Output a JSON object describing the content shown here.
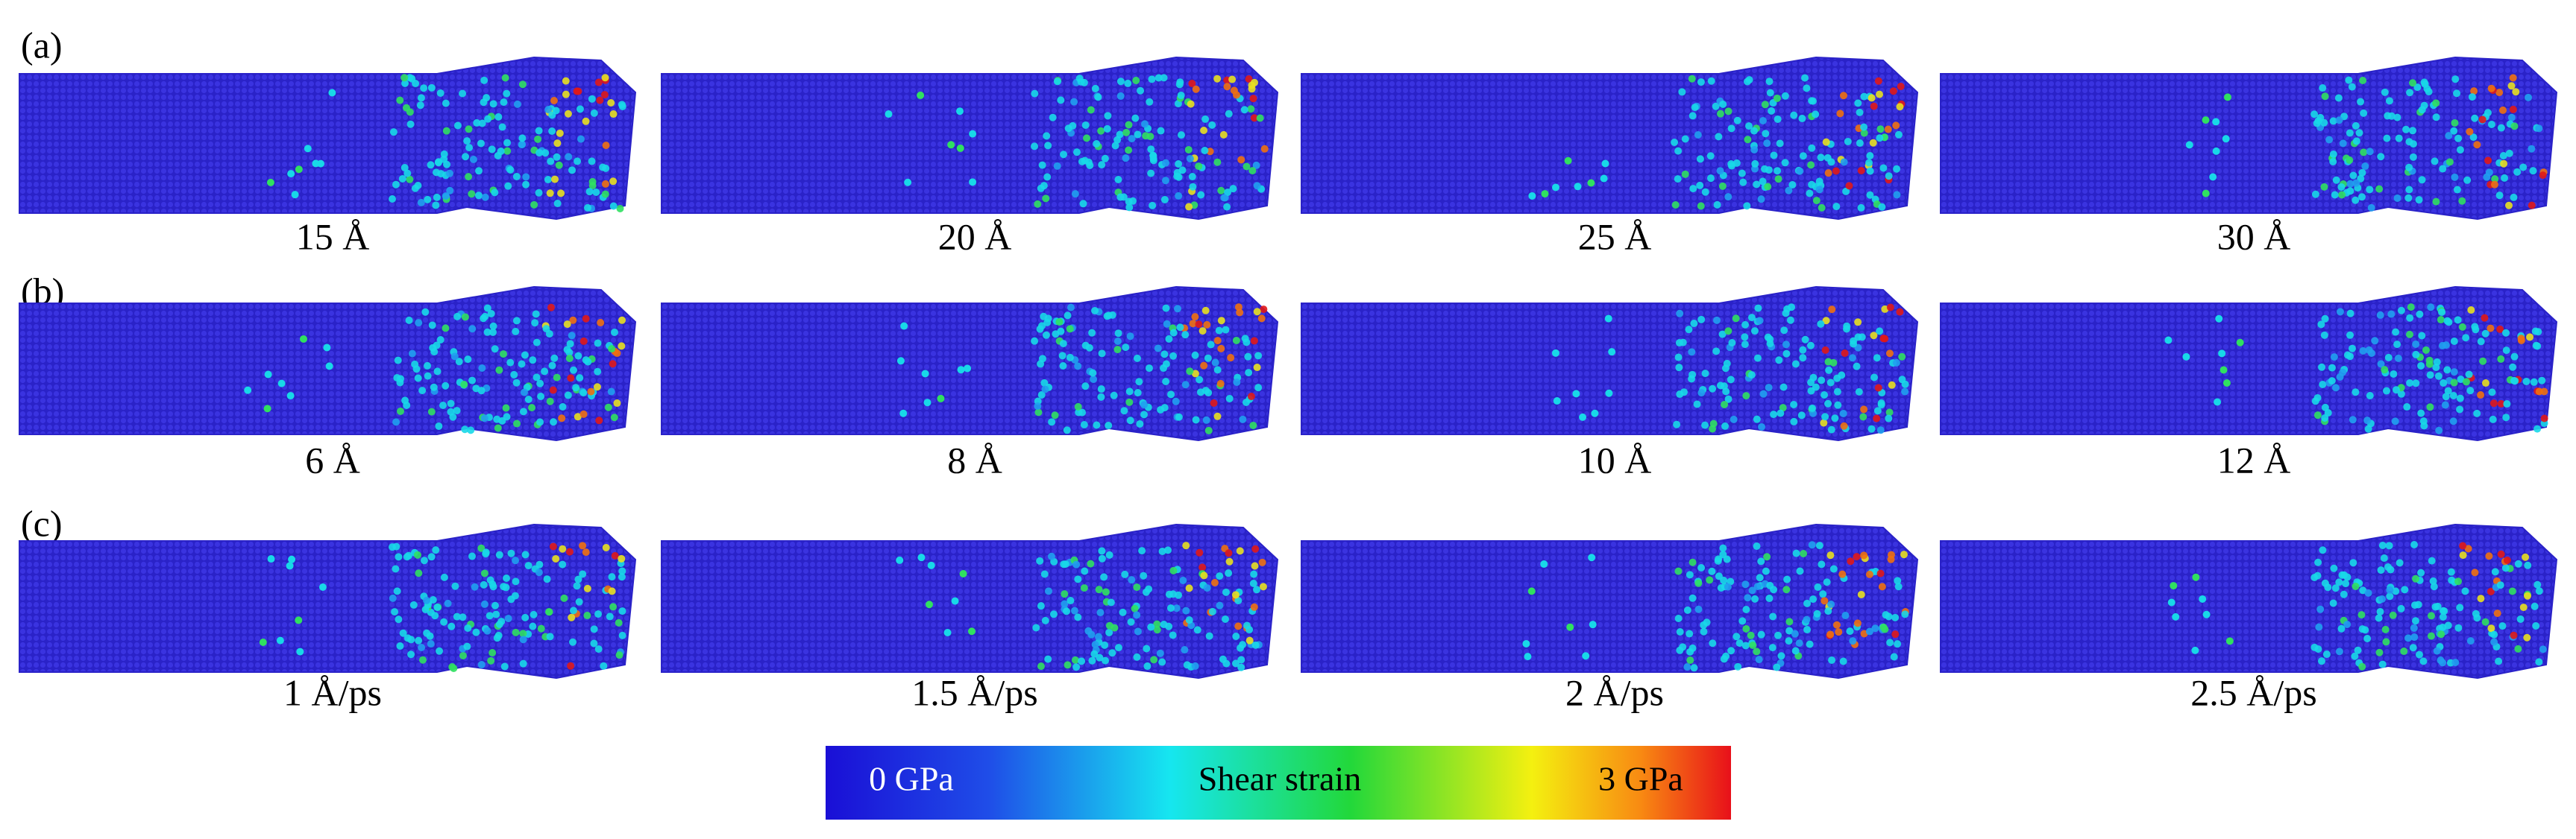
{
  "rows": [
    {
      "label": "(a)",
      "panels": [
        "15 Å",
        "20 Å",
        "25 Å",
        "30 Å"
      ]
    },
    {
      "label": "(b)",
      "panels": [
        "6 Å",
        "8 Å",
        "10 Å",
        "12 Å"
      ]
    },
    {
      "label": "(c)",
      "panels": [
        "1 Å/ps",
        "1.5 Å/ps",
        "2 Å/ps",
        "2.5 Å/ps"
      ]
    }
  ],
  "colorbar": {
    "min_label": "0 GPa",
    "title": "Shear strain",
    "max_label": "3 GPa"
  }
}
